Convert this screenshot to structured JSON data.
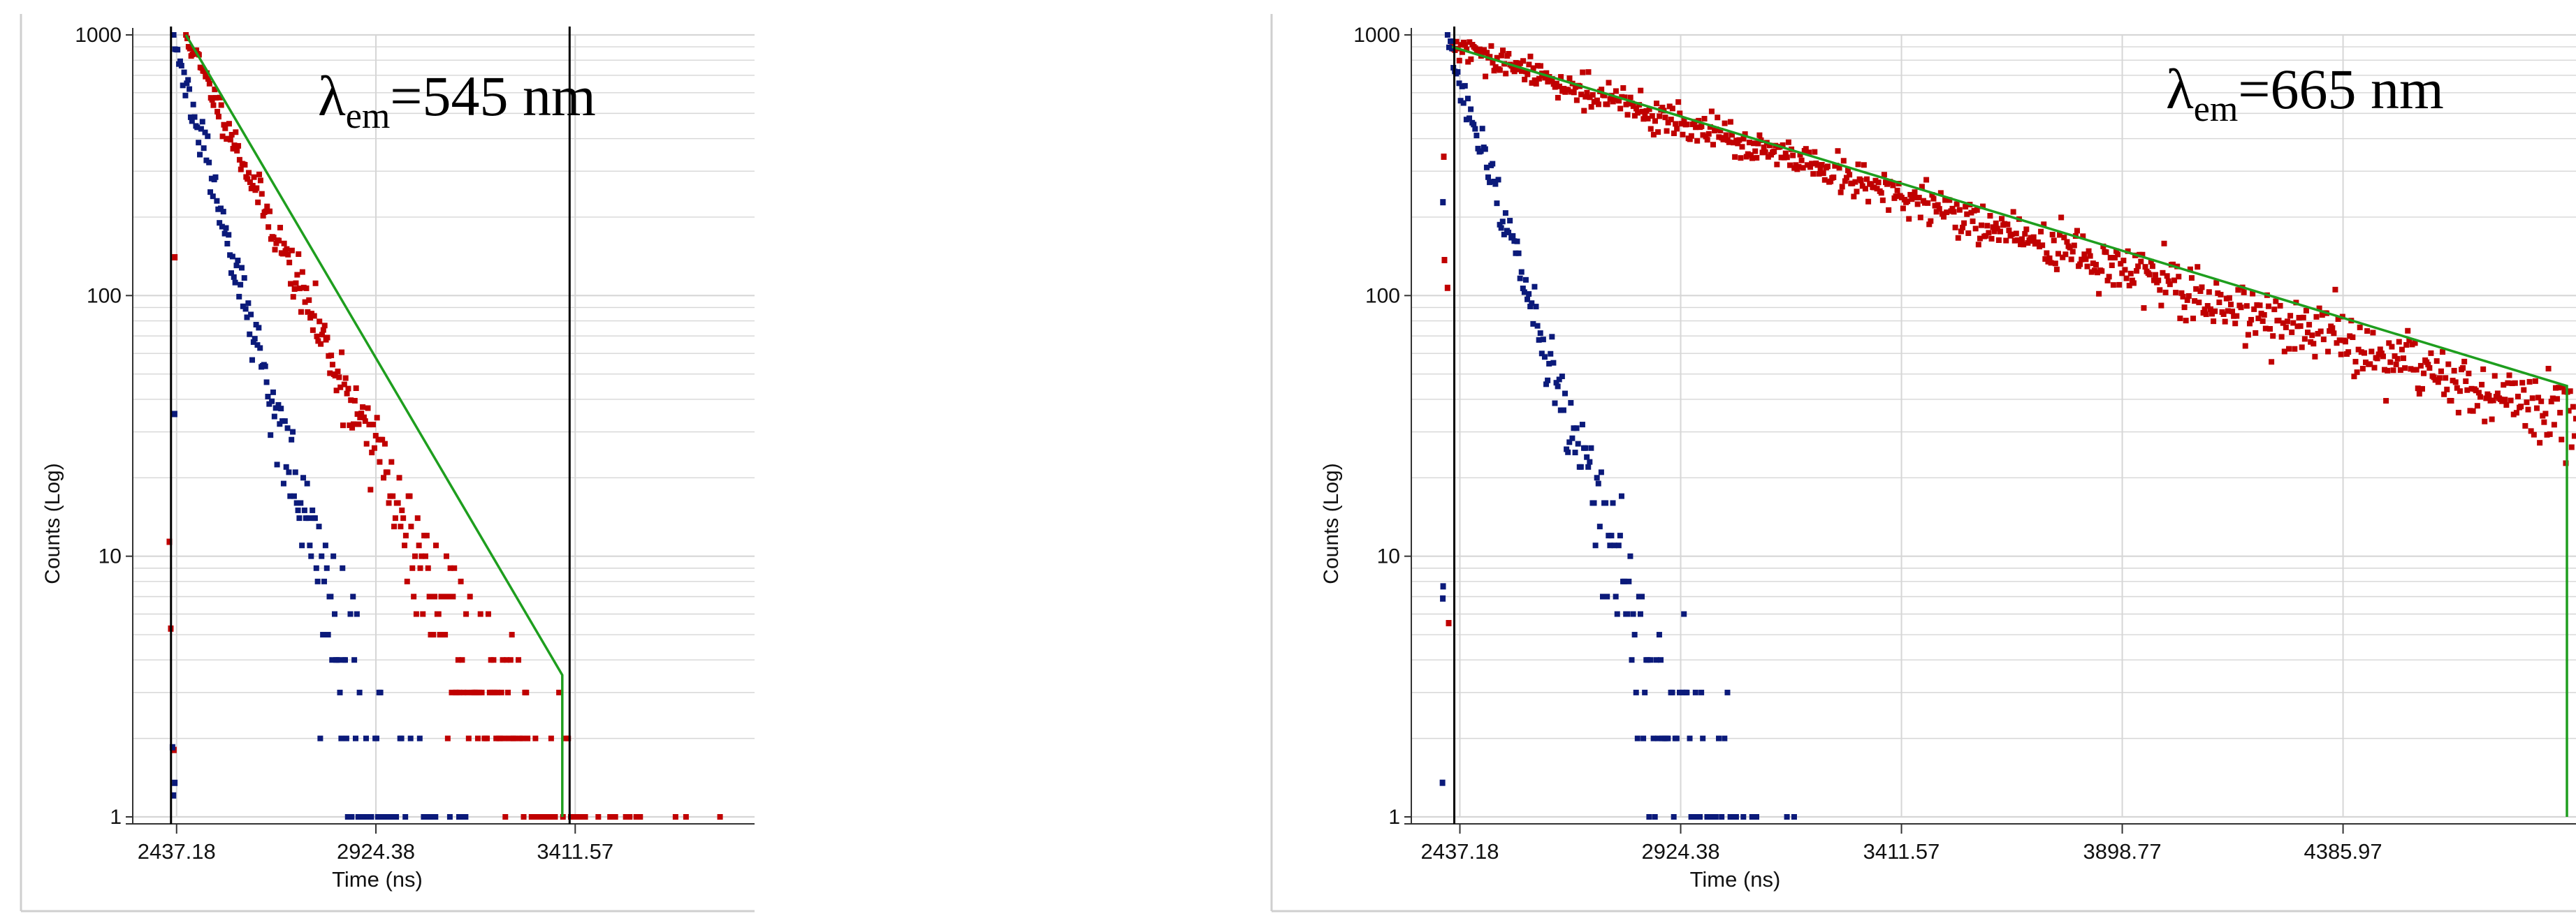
{
  "chart_data": [
    {
      "type": "scatter",
      "title": "",
      "annotation": {
        "lambda": "λ",
        "sub": "em",
        "value": "=545 nm"
      },
      "xlabel": "Time (ns)",
      "ylabel": "Counts (Log)",
      "ylog": true,
      "xlim": [
        2330,
        3850
      ],
      "ylim": [
        1,
        1000
      ],
      "x_ticks": [
        "2437.18",
        "2924.38",
        "3411.57"
      ],
      "x_tick_values": [
        2437.18,
        2924.38,
        3411.57
      ],
      "y_ticks": [
        "1",
        "10",
        "100",
        "1000"
      ],
      "y_tick_values": [
        1,
        10,
        100,
        1000
      ],
      "grid": true,
      "cursor_lines_x": [
        2437.18,
        3411.57
      ],
      "colors": {
        "decay": "#c00000",
        "irf": "#0b1a7a",
        "fit": "#1e9e1e",
        "cursor": "#000000",
        "grid": "#d6d6d6"
      },
      "series": [
        {
          "role": "decay",
          "tau": 125,
          "peak_x": 2460,
          "peak_y": 1000,
          "rise_x": 2420,
          "noise": 0.035
        },
        {
          "role": "irf",
          "tau": 76,
          "peak_x": 2430,
          "peak_y": 950,
          "rise_x": 2420,
          "noise": 0.045
        },
        {
          "role": "fit",
          "points": [
            [
              2460,
              1000
            ],
            [
              3380,
              3.5
            ],
            [
              3380,
              1
            ]
          ]
        }
      ]
    },
    {
      "type": "scatter",
      "title": "",
      "annotation": {
        "lambda": "λ",
        "sub": "em",
        "value": "=665 nm"
      },
      "xlabel": "Time (ns)",
      "ylabel": "Counts (Log)",
      "ylog": true,
      "xlim": [
        2330,
        4900
      ],
      "ylim": [
        1,
        1000
      ],
      "x_ticks": [
        "2437.18",
        "2924.38",
        "3411.57",
        "3898.77",
        "4385.97"
      ],
      "x_tick_values": [
        2437.18,
        2924.38,
        3411.57,
        3898.77,
        4385.97
      ],
      "y_ticks": [
        "1",
        "10",
        "100",
        "1000"
      ],
      "y_tick_values": [
        1,
        10,
        100,
        1000
      ],
      "grid": true,
      "cursor_lines_x": [
        2437.18
      ],
      "colors": {
        "decay": "#c00000",
        "irf": "#0b1a7a",
        "fit": "#1e9e1e",
        "cursor": "#000000",
        "grid": "#d6d6d6"
      },
      "series": [
        {
          "role": "decay",
          "tau": 750,
          "peak_x": 2420,
          "peak_y": 900,
          "rise_x": 2400,
          "noise": 0.035
        },
        {
          "role": "irf",
          "tau": 80,
          "peak_x": 2410,
          "peak_y": 950,
          "rise_x": 2400,
          "noise": 0.045
        },
        {
          "role": "fit",
          "points": [
            [
              2420,
              900
            ],
            [
              4880,
              45
            ],
            [
              4880,
              1
            ]
          ]
        }
      ]
    }
  ]
}
